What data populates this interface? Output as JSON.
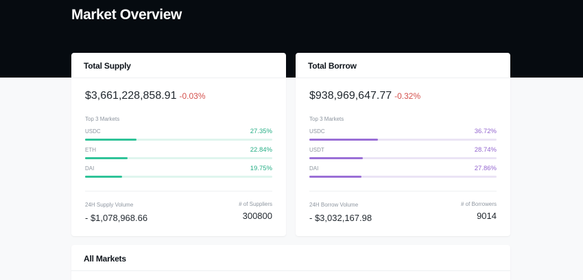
{
  "page": {
    "title": "Market Overview"
  },
  "colors": {
    "hero_background": "#060b10",
    "supply_accent": "#2fc398",
    "borrow_accent": "#9a6fd6",
    "negative_change": "#d4504c"
  },
  "supply": {
    "title": "Total Supply",
    "total": "$3,661,228,858.91",
    "change": "-0.03%",
    "top_markets_label": "Top 3 Markets",
    "markets": [
      {
        "name": "USDC",
        "percent": "27.35%",
        "fraction": 0.2735
      },
      {
        "name": "ETH",
        "percent": "22.84%",
        "fraction": 0.2284
      },
      {
        "name": "DAI",
        "percent": "19.75%",
        "fraction": 0.1975
      }
    ],
    "volume_label": "24H Supply Volume",
    "volume_value": "- $1,078,968.66",
    "count_label": "# of Suppliers",
    "count_value": "300800"
  },
  "borrow": {
    "title": "Total Borrow",
    "total": "$938,969,647.77",
    "change": "-0.32%",
    "top_markets_label": "Top 3 Markets",
    "markets": [
      {
        "name": "USDC",
        "percent": "36.72%",
        "fraction": 0.3672
      },
      {
        "name": "USDT",
        "percent": "28.74%",
        "fraction": 0.2874
      },
      {
        "name": "DAI",
        "percent": "27.86%",
        "fraction": 0.2786
      }
    ],
    "volume_label": "24H Borrow Volume",
    "volume_value": "- $3,032,167.98",
    "count_label": "# of Borrowers",
    "count_value": "9014"
  },
  "all_markets": {
    "title": "All Markets"
  }
}
